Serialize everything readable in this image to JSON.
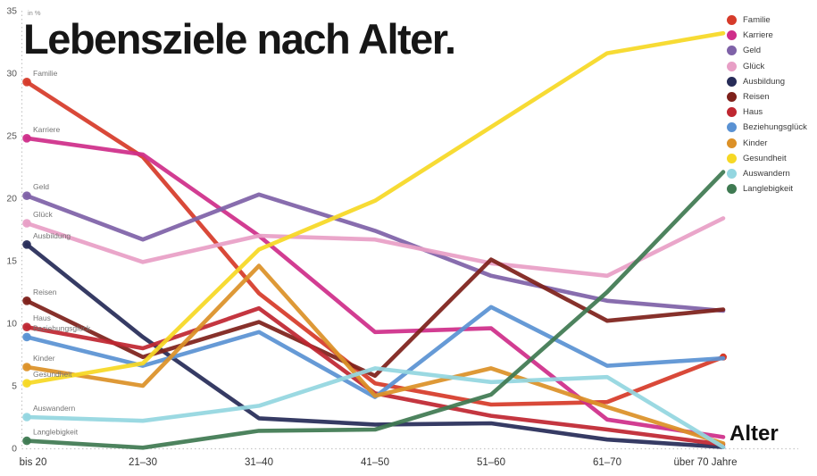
{
  "chart_data": {
    "type": "line",
    "title": "Lebensziele nach Alter.",
    "unit_label": "in %",
    "x_axis_label": "Alter",
    "categories": [
      "bis 20",
      "21–30",
      "31–40",
      "41–50",
      "51–60",
      "61–70",
      "über 70 Jahre"
    ],
    "y_ticks": [
      0,
      5,
      10,
      15,
      20,
      25,
      30,
      35
    ],
    "ylim": [
      0,
      35
    ],
    "grid": false,
    "legend_position": "right",
    "series": [
      {
        "name": "Familie",
        "color": "#d63b2a",
        "end_dot": true,
        "values": [
          29.3,
          23.3,
          12.4,
          5.2,
          3.5,
          3.7,
          7.3
        ]
      },
      {
        "name": "Karriere",
        "color": "#cf2e8a",
        "end_dot": false,
        "values": [
          24.8,
          23.5,
          17.0,
          9.3,
          9.6,
          2.3,
          0.9
        ]
      },
      {
        "name": "Geld",
        "color": "#7f62a8",
        "end_dot": false,
        "values": [
          20.2,
          16.7,
          20.3,
          17.4,
          13.8,
          11.8,
          11.0
        ]
      },
      {
        "name": "Glück",
        "color": "#e89fc6",
        "end_dot": false,
        "values": [
          18.0,
          14.9,
          17.0,
          16.7,
          14.8,
          13.8,
          18.4
        ]
      },
      {
        "name": "Ausbildung",
        "color": "#272c58",
        "end_dot": false,
        "values": [
          16.3,
          8.9,
          2.4,
          1.9,
          2.0,
          0.7,
          0.1
        ]
      },
      {
        "name": "Reisen",
        "color": "#7e211b",
        "end_dot": false,
        "values": [
          11.8,
          7.3,
          10.1,
          5.8,
          15.1,
          10.2,
          11.1
        ]
      },
      {
        "name": "Haus",
        "color": "#bf2731",
        "end_dot": false,
        "values": [
          9.7,
          8.0,
          11.2,
          4.4,
          2.6,
          1.5,
          0.3
        ]
      },
      {
        "name": "Beziehungsglück",
        "color": "#5a92d3",
        "end_dot": false,
        "values": [
          8.9,
          6.6,
          9.3,
          4.1,
          11.3,
          6.6,
          7.2
        ]
      },
      {
        "name": "Kinder",
        "color": "#dc9128",
        "end_dot": false,
        "values": [
          6.5,
          5.0,
          14.6,
          4.2,
          6.4,
          3.3,
          0.4
        ]
      },
      {
        "name": "Gesundheit",
        "color": "#f6d825",
        "end_dot": false,
        "values": [
          5.2,
          6.8,
          15.9,
          19.8,
          25.7,
          31.6,
          33.2
        ]
      },
      {
        "name": "Auswandern",
        "color": "#93d6e0",
        "end_dot": false,
        "values": [
          2.5,
          2.2,
          3.4,
          6.4,
          5.3,
          5.7,
          0.1
        ]
      },
      {
        "name": "Langlebigkeit",
        "color": "#3f7a52",
        "end_dot": false,
        "values": [
          0.6,
          0.05,
          1.4,
          1.5,
          4.3,
          12.5,
          22.1
        ]
      }
    ]
  }
}
